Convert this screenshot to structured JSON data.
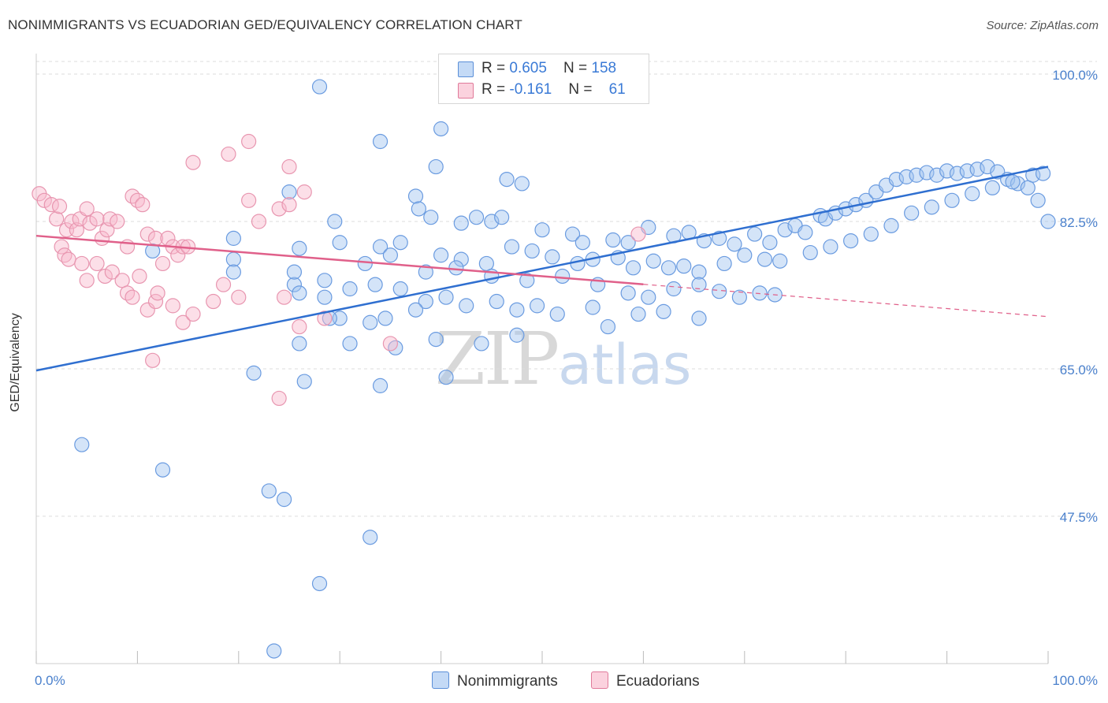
{
  "header": {
    "title": "NONIMMIGRANTS VS ECUADORIAN GED/EQUIVALENCY CORRELATION CHART",
    "source": "Source: ZipAtlas.com"
  },
  "watermark": {
    "zip": "ZIP",
    "atlas": "atlas"
  },
  "legend": {
    "rows": [
      {
        "r_label": "R = ",
        "r_value": "0.605",
        "n_label": "N = ",
        "n_value": "158",
        "color": "#a8c8f0",
        "border": "#5b8fd8"
      },
      {
        "r_label": "R = ",
        "r_value": "-0.161",
        "n_label": "N = ",
        "n_value": "61",
        "color": "#f8c0d0",
        "border": "#e07a9a"
      }
    ],
    "bottom": [
      {
        "label": "Nonimmigrants",
        "color": "#a8c8f0",
        "border": "#5b8fd8"
      },
      {
        "label": "Ecuadorians",
        "color": "#f8c0d0",
        "border": "#e07a9a"
      }
    ]
  },
  "chart_data": {
    "type": "scatter",
    "title": "NONIMMIGRANTS VS ECUADORIAN GED/EQUIVALENCY CORRELATION CHART",
    "xlabel": "",
    "ylabel": "GED/Equivalency",
    "xlim": [
      0,
      100
    ],
    "ylim": [
      30,
      101.5
    ],
    "x_tick_labels": [
      "0.0%",
      "100.0%"
    ],
    "y_ticks": [
      47.5,
      65.0,
      82.5,
      100.0
    ],
    "y_tick_labels": [
      "47.5%",
      "65.0%",
      "82.5%",
      "100.0%"
    ],
    "grid": "horizontal dashed",
    "legend_position": "top-center",
    "series": [
      {
        "name": "Nonimmigrants",
        "color": "#5b8fd8",
        "fill": "rgba(160,195,240,0.45)",
        "stroke": "#6a9be0",
        "trend": {
          "x": [
            0,
            100
          ],
          "y": [
            64.8,
            89.0
          ],
          "color": "#2f6fd0"
        },
        "points": [
          [
            28.0,
            98.5
          ],
          [
            34.0,
            92.0
          ],
          [
            40.0,
            93.5
          ],
          [
            25.0,
            86.0
          ],
          [
            39.5,
            89.0
          ],
          [
            46.5,
            87.5
          ],
          [
            48.0,
            87.0
          ],
          [
            37.5,
            85.5
          ],
          [
            37.8,
            84.0
          ],
          [
            39.0,
            83.0
          ],
          [
            29.5,
            82.5
          ],
          [
            42.0,
            82.3
          ],
          [
            43.5,
            83.0
          ],
          [
            45.0,
            82.5
          ],
          [
            46.0,
            83.0
          ],
          [
            50.0,
            81.5
          ],
          [
            53.0,
            81.0
          ],
          [
            54.0,
            80.0
          ],
          [
            57.0,
            80.3
          ],
          [
            58.5,
            80.0
          ],
          [
            60.5,
            81.8
          ],
          [
            63.0,
            80.8
          ],
          [
            64.5,
            81.2
          ],
          [
            66.0,
            80.2
          ],
          [
            67.5,
            80.5
          ],
          [
            69.0,
            79.8
          ],
          [
            71.0,
            81.0
          ],
          [
            72.5,
            80.0
          ],
          [
            74.0,
            81.5
          ],
          [
            75.0,
            82.0
          ],
          [
            76.0,
            81.2
          ],
          [
            77.5,
            83.2
          ],
          [
            78.0,
            82.8
          ],
          [
            79.0,
            83.5
          ],
          [
            80.0,
            84.0
          ],
          [
            81.0,
            84.5
          ],
          [
            82.0,
            85.0
          ],
          [
            83.0,
            86.0
          ],
          [
            84.0,
            86.8
          ],
          [
            85.0,
            87.5
          ],
          [
            86.0,
            87.8
          ],
          [
            87.0,
            88.0
          ],
          [
            88.0,
            88.3
          ],
          [
            89.0,
            88.0
          ],
          [
            90.0,
            88.5
          ],
          [
            91.0,
            88.2
          ],
          [
            92.0,
            88.5
          ],
          [
            93.0,
            88.7
          ],
          [
            94.0,
            89.0
          ],
          [
            95.0,
            88.4
          ],
          [
            96.0,
            87.5
          ],
          [
            97.0,
            87.0
          ],
          [
            98.0,
            86.5
          ],
          [
            99.0,
            85.0
          ],
          [
            100.0,
            82.5
          ],
          [
            11.5,
            79.0
          ],
          [
            19.5,
            80.5
          ],
          [
            26.0,
            79.3
          ],
          [
            30.0,
            80.0
          ],
          [
            34.0,
            79.5
          ],
          [
            36.0,
            80.0
          ],
          [
            40.0,
            78.5
          ],
          [
            42.0,
            78.0
          ],
          [
            44.5,
            77.5
          ],
          [
            47.0,
            79.5
          ],
          [
            49.0,
            79.0
          ],
          [
            51.0,
            78.3
          ],
          [
            53.5,
            77.5
          ],
          [
            55.0,
            78.0
          ],
          [
            57.5,
            78.2
          ],
          [
            59.0,
            77.0
          ],
          [
            61.0,
            77.8
          ],
          [
            62.5,
            77.0
          ],
          [
            64.0,
            77.2
          ],
          [
            65.5,
            76.5
          ],
          [
            68.0,
            77.5
          ],
          [
            70.0,
            78.5
          ],
          [
            72.0,
            78.0
          ],
          [
            73.5,
            77.8
          ],
          [
            76.5,
            78.8
          ],
          [
            78.5,
            79.5
          ],
          [
            80.5,
            80.2
          ],
          [
            82.5,
            81.0
          ],
          [
            84.5,
            82.0
          ],
          [
            86.5,
            83.5
          ],
          [
            88.5,
            84.2
          ],
          [
            90.5,
            85.0
          ],
          [
            92.5,
            85.8
          ],
          [
            94.5,
            86.5
          ],
          [
            96.5,
            87.2
          ],
          [
            98.5,
            88.0
          ],
          [
            99.5,
            88.2
          ],
          [
            19.5,
            78.0
          ],
          [
            25.5,
            75.0
          ],
          [
            32.5,
            77.5
          ],
          [
            35.0,
            78.5
          ],
          [
            38.5,
            76.5
          ],
          [
            41.5,
            77.0
          ],
          [
            45.0,
            76.0
          ],
          [
            48.5,
            75.5
          ],
          [
            52.0,
            76.0
          ],
          [
            55.5,
            75.0
          ],
          [
            58.5,
            74.0
          ],
          [
            60.5,
            73.5
          ],
          [
            63.0,
            74.5
          ],
          [
            65.5,
            75.0
          ],
          [
            67.5,
            74.2
          ],
          [
            69.5,
            73.5
          ],
          [
            71.5,
            74.0
          ],
          [
            73.0,
            73.8
          ],
          [
            19.5,
            76.5
          ],
          [
            26.0,
            74.0
          ],
          [
            28.5,
            75.5
          ],
          [
            31.0,
            74.5
          ],
          [
            33.5,
            75.0
          ],
          [
            36.0,
            74.5
          ],
          [
            38.5,
            73.0
          ],
          [
            40.5,
            73.5
          ],
          [
            42.5,
            72.5
          ],
          [
            45.5,
            73.0
          ],
          [
            47.5,
            72.0
          ],
          [
            49.5,
            72.5
          ],
          [
            51.5,
            71.5
          ],
          [
            55.0,
            72.3
          ],
          [
            56.5,
            70.0
          ],
          [
            59.5,
            71.5
          ],
          [
            62.0,
            71.8
          ],
          [
            65.5,
            71.0
          ],
          [
            25.5,
            76.5
          ],
          [
            28.5,
            73.5
          ],
          [
            30.0,
            71.0
          ],
          [
            33.0,
            70.5
          ],
          [
            34.5,
            71.0
          ],
          [
            37.5,
            72.0
          ],
          [
            26.0,
            68.0
          ],
          [
            29.0,
            71.0
          ],
          [
            31.0,
            68.0
          ],
          [
            35.5,
            67.5
          ],
          [
            39.5,
            68.5
          ],
          [
            44.0,
            68.0
          ],
          [
            47.5,
            69.0
          ],
          [
            21.5,
            64.5
          ],
          [
            26.5,
            63.5
          ],
          [
            34.0,
            63.0
          ],
          [
            40.5,
            64.0
          ],
          [
            4.5,
            56.0
          ],
          [
            12.5,
            53.0
          ],
          [
            23.0,
            50.5
          ],
          [
            24.5,
            49.5
          ],
          [
            33.0,
            45.0
          ],
          [
            28.0,
            39.5
          ],
          [
            23.5,
            31.5
          ]
        ]
      },
      {
        "name": "Ecuadorians",
        "color": "#e07a9a",
        "fill": "rgba(248,185,205,0.45)",
        "stroke": "#e896b0",
        "trend": {
          "x": [
            0,
            100
          ],
          "y": [
            80.8,
            71.2
          ],
          "solid_until": 60,
          "color": "#e0608a"
        },
        "points": [
          [
            0.3,
            85.8
          ],
          [
            0.8,
            85.0
          ],
          [
            1.5,
            84.5
          ],
          [
            2.0,
            82.8
          ],
          [
            2.3,
            84.3
          ],
          [
            3.0,
            81.5
          ],
          [
            3.5,
            82.5
          ],
          [
            4.0,
            81.5
          ],
          [
            4.3,
            82.8
          ],
          [
            5.0,
            84.0
          ],
          [
            5.3,
            82.3
          ],
          [
            6.0,
            82.8
          ],
          [
            6.5,
            80.5
          ],
          [
            7.0,
            81.5
          ],
          [
            7.3,
            82.8
          ],
          [
            8.0,
            82.5
          ],
          [
            9.0,
            79.5
          ],
          [
            9.5,
            85.5
          ],
          [
            10.0,
            85.0
          ],
          [
            10.5,
            84.5
          ],
          [
            11.0,
            81.0
          ],
          [
            11.8,
            80.5
          ],
          [
            12.5,
            77.5
          ],
          [
            13.0,
            80.5
          ],
          [
            13.5,
            79.5
          ],
          [
            14.0,
            78.5
          ],
          [
            14.5,
            79.5
          ],
          [
            15.0,
            79.5
          ],
          [
            2.5,
            79.5
          ],
          [
            2.8,
            78.5
          ],
          [
            3.2,
            78.0
          ],
          [
            4.5,
            77.5
          ],
          [
            5.0,
            75.5
          ],
          [
            6.0,
            77.5
          ],
          [
            6.8,
            76.0
          ],
          [
            7.5,
            76.5
          ],
          [
            8.5,
            75.5
          ],
          [
            9.0,
            74.0
          ],
          [
            9.5,
            73.5
          ],
          [
            10.2,
            76.0
          ],
          [
            11.0,
            72.0
          ],
          [
            11.8,
            73.0
          ],
          [
            12.0,
            74.0
          ],
          [
            13.5,
            72.5
          ],
          [
            14.5,
            70.5
          ],
          [
            15.5,
            71.5
          ],
          [
            17.5,
            73.0
          ],
          [
            18.5,
            75.0
          ],
          [
            20.0,
            73.5
          ],
          [
            21.0,
            85.0
          ],
          [
            22.0,
            82.5
          ],
          [
            24.0,
            84.0
          ],
          [
            25.0,
            84.5
          ],
          [
            24.5,
            73.5
          ],
          [
            26.0,
            70.0
          ],
          [
            28.5,
            71.0
          ],
          [
            15.5,
            89.5
          ],
          [
            19.0,
            90.5
          ],
          [
            21.0,
            92.0
          ],
          [
            25.0,
            89.0
          ],
          [
            26.5,
            86.0
          ],
          [
            24.0,
            61.5
          ],
          [
            11.5,
            66.0
          ],
          [
            35.0,
            68.0
          ],
          [
            59.5,
            81.0
          ]
        ]
      }
    ]
  }
}
